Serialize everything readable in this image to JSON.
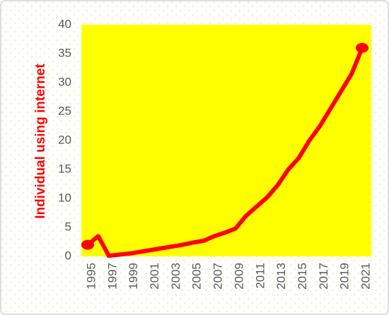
{
  "chart_data": {
    "type": "line",
    "y_label": "Individual using internet",
    "x": [
      1995,
      1996,
      1997,
      1998,
      1999,
      2000,
      2001,
      2002,
      2003,
      2004,
      2005,
      2006,
      2007,
      2008,
      2009,
      2010,
      2011,
      2012,
      2013,
      2014,
      2015,
      2016,
      2017,
      2018,
      2019,
      2020,
      2021
    ],
    "values": [
      2,
      3.5,
      0.1,
      0.3,
      0.5,
      0.8,
      1.1,
      1.4,
      1.7,
      2.0,
      2.4,
      2.7,
      3.5,
      4.1,
      4.8,
      7.0,
      8.6,
      10.2,
      12.3,
      15.0,
      17.0,
      20.0,
      22.5,
      25.5,
      28.5,
      31.5,
      36
    ],
    "color": "#ff0000",
    "plot_color": "#ffff00",
    "xlim": [
      1995,
      2021
    ],
    "xticks": [
      1995,
      1997,
      1999,
      2001,
      2003,
      2005,
      2007,
      2009,
      2011,
      2013,
      2015,
      2017,
      2019,
      2021
    ],
    "ylim": [
      0,
      40
    ],
    "yticks": [
      0,
      5,
      10,
      15,
      20,
      25,
      30,
      35,
      40
    ],
    "grid": false
  }
}
